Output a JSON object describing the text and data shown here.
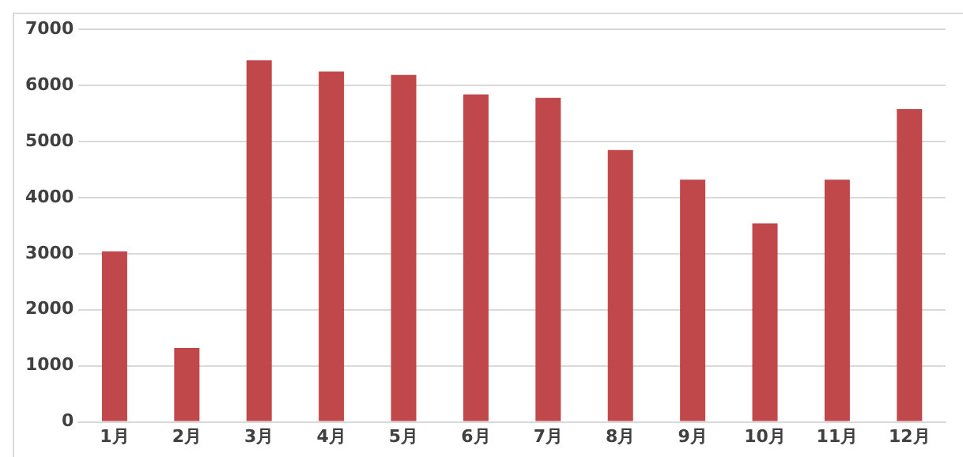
{
  "chart_data": {
    "type": "bar",
    "categories": [
      "1月",
      "2月",
      "3月",
      "4月",
      "5月",
      "6月",
      "7月",
      "8月",
      "9月",
      "10月",
      "11月",
      "12月"
    ],
    "values": [
      3040,
      1320,
      6450,
      6250,
      6190,
      5840,
      5780,
      4850,
      4320,
      3540,
      4320,
      5580
    ],
    "color": "#c0474a",
    "ylim": [
      0,
      7000
    ],
    "yticks": [
      0,
      1000,
      2000,
      3000,
      4000,
      5000,
      6000,
      7000
    ],
    "grid": "y"
  }
}
